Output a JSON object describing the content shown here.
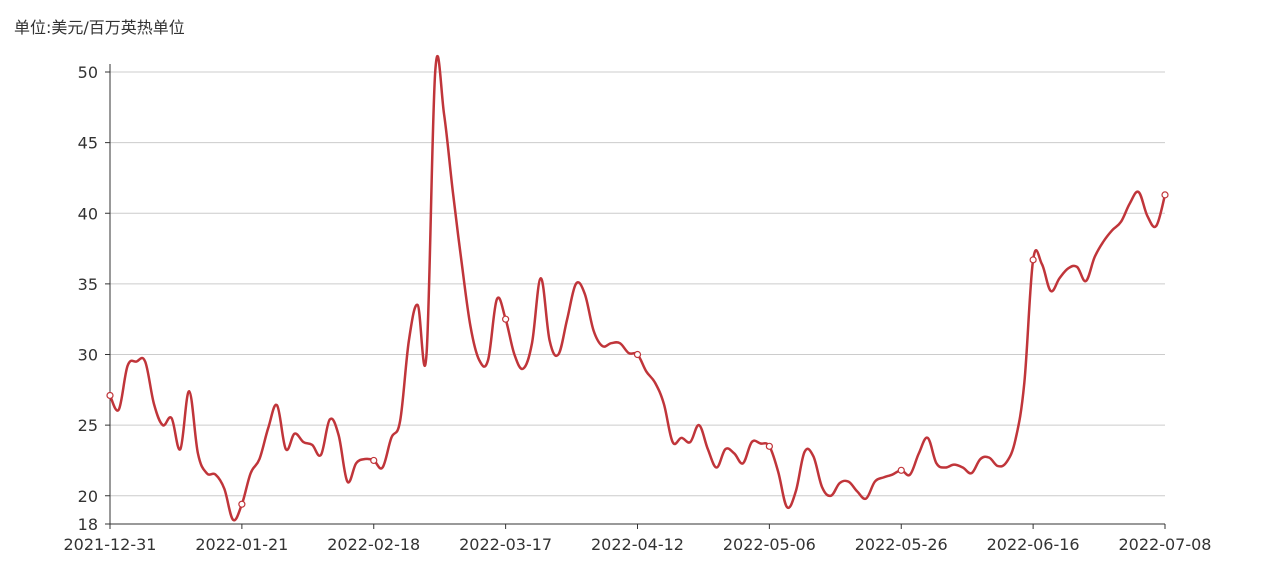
{
  "chart_data": {
    "type": "line",
    "unit_label": "单位:美元/百万英热单位",
    "categories": [
      "2021-12-31",
      null,
      null,
      null,
      null,
      null,
      null,
      null,
      null,
      null,
      null,
      null,
      null,
      null,
      null,
      "2022-01-21",
      null,
      null,
      null,
      null,
      null,
      null,
      null,
      null,
      null,
      null,
      null,
      null,
      null,
      null,
      "2022-02-18",
      null,
      null,
      null,
      null,
      null,
      null,
      null,
      null,
      null,
      null,
      null,
      null,
      null,
      null,
      "2022-03-17",
      null,
      null,
      null,
      null,
      null,
      null,
      null,
      null,
      null,
      null,
      null,
      null,
      null,
      null,
      "2022-04-12",
      null,
      null,
      null,
      null,
      null,
      null,
      null,
      null,
      null,
      null,
      null,
      null,
      null,
      null,
      "2022-05-06",
      null,
      null,
      null,
      null,
      null,
      null,
      null,
      null,
      null,
      null,
      null,
      null,
      null,
      null,
      "2022-05-26",
      null,
      null,
      null,
      null,
      null,
      null,
      null,
      null,
      null,
      null,
      null,
      null,
      null,
      null,
      "2022-06-16",
      null,
      null,
      null,
      null,
      null,
      null,
      null,
      null,
      null,
      null,
      null,
      null,
      null,
      null,
      "2022-07-08"
    ],
    "series": [
      {
        "color": "#c0353a",
        "values": [
          27.1,
          26.1,
          29.2,
          29.5,
          29.5,
          26.5,
          25.0,
          25.5,
          23.3,
          27.4,
          23.0,
          21.6,
          21.5,
          20.5,
          18.3,
          19.4,
          21.6,
          22.6,
          24.8,
          26.4,
          23.3,
          24.4,
          23.8,
          23.6,
          22.9,
          25.4,
          24.3,
          21.0,
          22.3,
          22.6,
          22.5,
          22.0,
          24.1,
          25.3,
          31.0,
          33.5,
          30.0,
          50.1,
          47.0,
          41.5,
          36.5,
          32.0,
          29.6,
          29.6,
          33.9,
          32.5,
          30.0,
          29.0,
          30.8,
          35.4,
          31.0,
          30.0,
          32.5,
          35.0,
          34.3,
          31.7,
          30.6,
          30.8,
          30.8,
          30.1,
          30.0,
          28.8,
          28.0,
          26.5,
          23.8,
          24.1,
          23.8,
          25.0,
          23.3,
          22.0,
          23.3,
          23.0,
          22.3,
          23.8,
          23.7,
          23.5,
          21.7,
          19.2,
          20.3,
          23.1,
          22.8,
          20.6,
          20.0,
          20.9,
          21.0,
          20.3,
          19.8,
          21.0,
          21.3,
          21.5,
          21.8,
          21.5,
          23.0,
          24.1,
          22.3,
          22.0,
          22.2,
          22.0,
          21.6,
          22.6,
          22.7,
          22.1,
          22.4,
          24.0,
          28.0,
          36.7,
          36.4,
          34.5,
          35.4,
          36.1,
          36.2,
          35.2,
          36.9,
          38.0,
          38.8,
          39.4,
          40.7,
          41.5,
          39.8,
          39.1,
          41.3
        ]
      }
    ],
    "ylim": [
      18,
      50
    ],
    "yticks": [
      18,
      20,
      25,
      30,
      35,
      40,
      45,
      50
    ],
    "grid": true
  }
}
